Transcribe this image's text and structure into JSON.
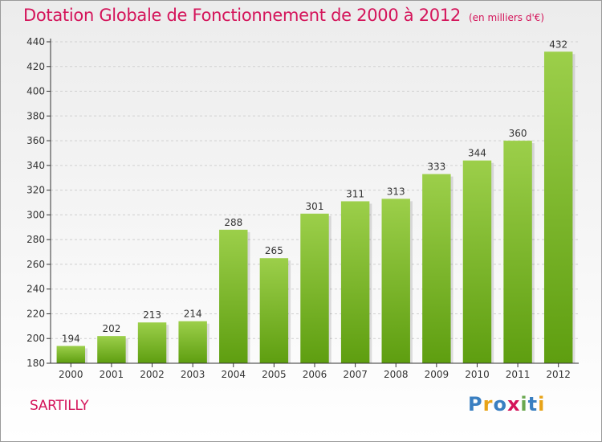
{
  "header": {
    "title": "Dotation Globale de Fonctionnement de 2000 à 2012",
    "subtitle": "(en milliers d'€)"
  },
  "commune": "SARTILLY",
  "logo": {
    "text": "Proxiti",
    "letters": [
      {
        "char": "P",
        "color": "#3a7fc1"
      },
      {
        "char": "r",
        "color": "#e8a317"
      },
      {
        "char": "o",
        "color": "#3a7fc1"
      },
      {
        "char": "x",
        "color": "#d4145a"
      },
      {
        "char": "i",
        "color": "#6aa84f"
      },
      {
        "char": "t",
        "color": "#3a7fc1"
      },
      {
        "char": "i",
        "color": "#e8a317"
      }
    ]
  },
  "colors": {
    "accent": "#d4145a",
    "bar_top": "#9ccf4a",
    "bar_bottom": "#5e9e10",
    "grid": "#d0d0d0",
    "axis": "#333333"
  },
  "chart_data": {
    "type": "bar",
    "title": "Dotation Globale de Fonctionnement de 2000 à 2012",
    "subtitle": "(en milliers d'€)",
    "categories": [
      "2000",
      "2001",
      "2002",
      "2003",
      "2004",
      "2005",
      "2006",
      "2007",
      "2008",
      "2009",
      "2010",
      "2011",
      "2012"
    ],
    "values": [
      194,
      202,
      213,
      214,
      288,
      265,
      301,
      311,
      313,
      333,
      344,
      360,
      432
    ],
    "ylim": [
      180,
      440
    ],
    "yticks": [
      180,
      200,
      220,
      240,
      260,
      280,
      300,
      320,
      340,
      360,
      380,
      400,
      420,
      440
    ],
    "grid": true,
    "data_labels": true
  }
}
